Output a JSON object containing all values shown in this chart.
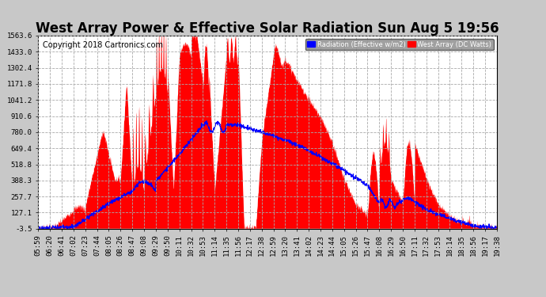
{
  "title": "West Array Power & Effective Solar Radiation Sun Aug 5 19:56",
  "copyright": "Copyright 2018 Cartronics.com",
  "yticks": [
    -3.5,
    127.1,
    257.7,
    388.3,
    518.8,
    649.4,
    780.0,
    910.6,
    1041.2,
    1171.8,
    1302.4,
    1433.0,
    1563.6
  ],
  "ymin": -3.5,
  "ymax": 1563.6,
  "fig_bg_color": "#c8c8c8",
  "plot_bg_color": "#ffffff",
  "grid_color": "#aaaaaa",
  "fill_color": "red",
  "line_color": "blue",
  "legend_radiation_label": "Radiation (Effective w/m2)",
  "legend_west_label": "West Array (DC Watts)",
  "title_fontsize": 12,
  "copyright_fontsize": 7,
  "tick_fontsize": 6.5,
  "xtick_labels": [
    "05:59",
    "06:20",
    "06:41",
    "07:02",
    "07:23",
    "07:44",
    "08:05",
    "08:26",
    "08:47",
    "09:08",
    "09:29",
    "09:50",
    "10:11",
    "10:32",
    "10:53",
    "11:14",
    "11:35",
    "11:56",
    "12:17",
    "12:38",
    "12:59",
    "13:20",
    "13:41",
    "14:02",
    "14:23",
    "14:44",
    "15:05",
    "15:26",
    "15:47",
    "16:08",
    "16:29",
    "16:50",
    "17:11",
    "17:32",
    "17:53",
    "18:14",
    "18:35",
    "18:56",
    "19:17",
    "19:38"
  ]
}
